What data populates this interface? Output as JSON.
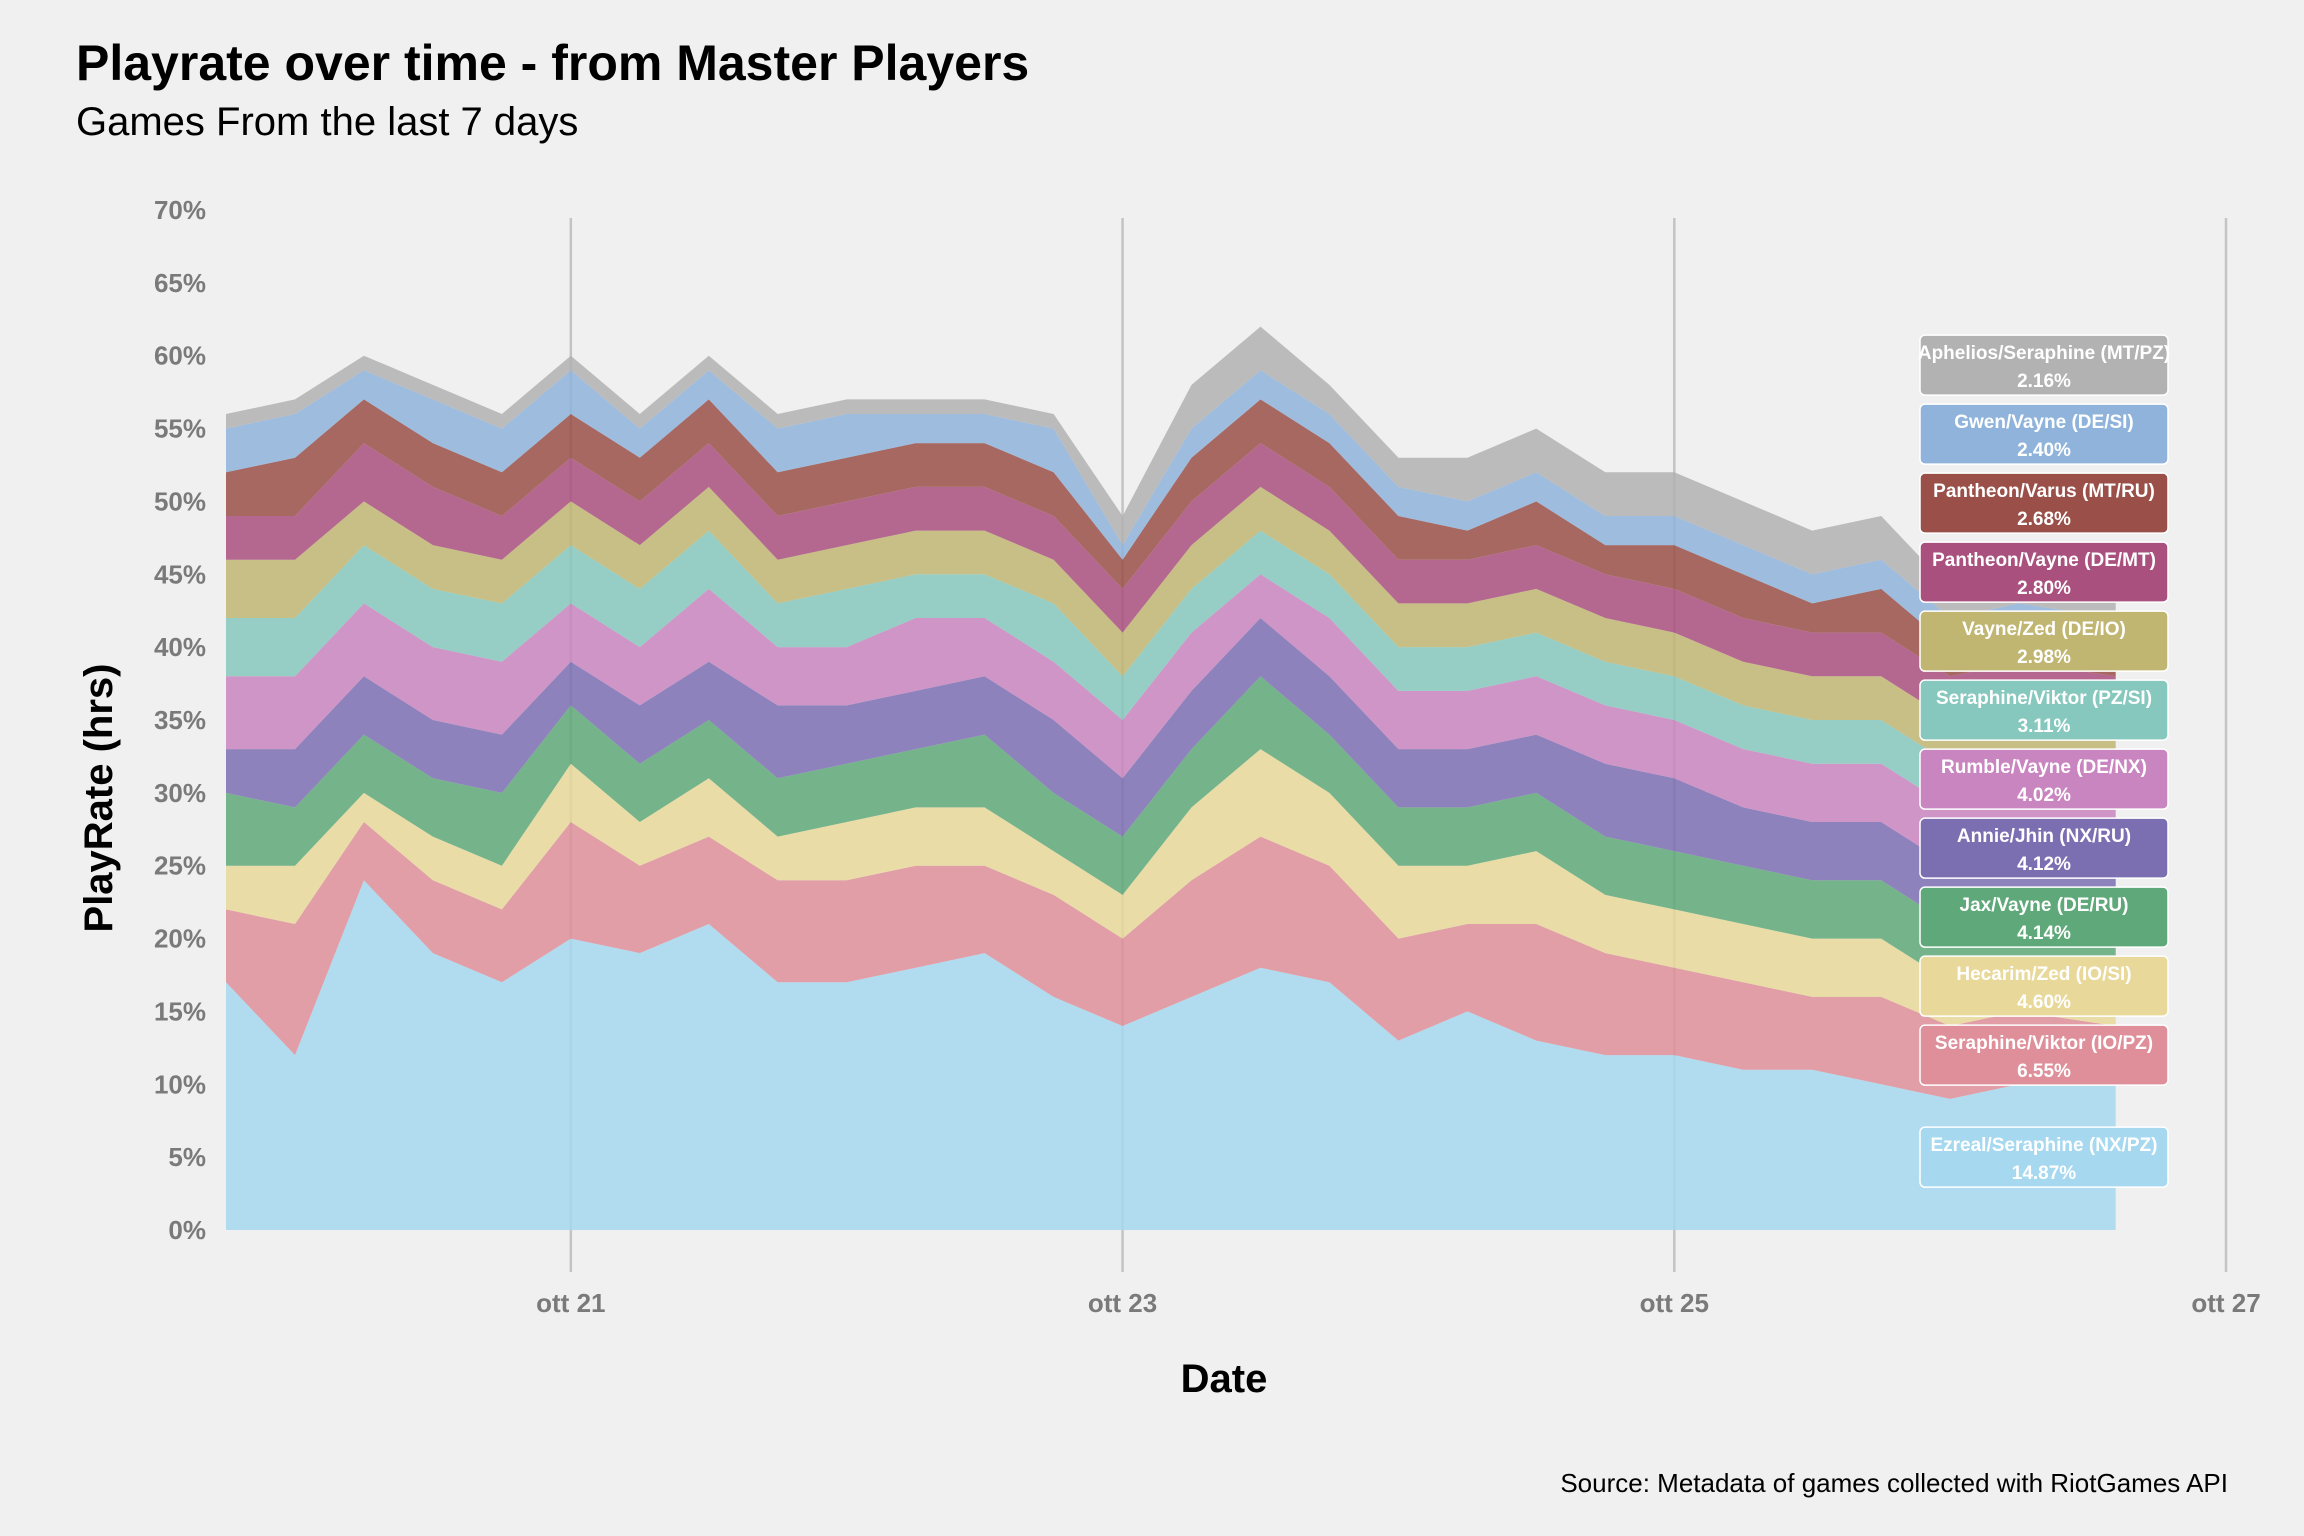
{
  "header": {
    "title": "Playrate over time - from Master Players",
    "subtitle": "Games From the last 7 days",
    "caption": "Source: Metadata of games collected with RiotGames API"
  },
  "chart_data": {
    "type": "area",
    "stacked": true,
    "xlabel": "Date",
    "ylabel": "PlayRate (hrs)",
    "xlim": [
      19.75,
      27
    ],
    "ylim": [
      0,
      70
    ],
    "x_ticks": [
      {
        "value": 21,
        "label": "ott 21"
      },
      {
        "value": 23,
        "label": "ott 23"
      },
      {
        "value": 25,
        "label": "ott 25"
      },
      {
        "value": 27,
        "label": "ott 27"
      }
    ],
    "y_ticks": [
      {
        "value": 0,
        "label": "0%"
      },
      {
        "value": 5,
        "label": "5%"
      },
      {
        "value": 10,
        "label": "10%"
      },
      {
        "value": 15,
        "label": "15%"
      },
      {
        "value": 20,
        "label": "20%"
      },
      {
        "value": 25,
        "label": "25%"
      },
      {
        "value": 30,
        "label": "30%"
      },
      {
        "value": 35,
        "label": "35%"
      },
      {
        "value": 40,
        "label": "40%"
      },
      {
        "value": 45,
        "label": "45%"
      },
      {
        "value": 50,
        "label": "50%"
      },
      {
        "value": 55,
        "label": "55%"
      },
      {
        "value": 60,
        "label": "60%"
      },
      {
        "value": 65,
        "label": "65%"
      },
      {
        "value": 70,
        "label": "70%"
      }
    ],
    "grid": {
      "vertical": true,
      "horizontal": false
    },
    "x": [
      19.75,
      20.0,
      20.25,
      20.5,
      20.75,
      21.0,
      21.25,
      21.5,
      21.75,
      22.0,
      22.25,
      22.5,
      22.75,
      23.0,
      23.25,
      23.5,
      23.75,
      24.0,
      24.25,
      24.5,
      24.75,
      25.0,
      25.25,
      25.5,
      25.75,
      26.0,
      26.25,
      26.6
    ],
    "series": [
      {
        "name": "Ezreal/Seraphine (NX/PZ)",
        "label": "Ezreal/Seraphine (NX/PZ)",
        "value_label": "14.87%",
        "color": "#a6d8f0",
        "values": [
          17,
          12,
          24,
          19,
          17,
          20,
          19,
          21,
          17,
          17,
          18,
          19,
          16,
          14,
          16,
          18,
          17,
          13,
          15,
          13,
          12,
          12,
          11,
          11,
          10,
          9,
          10,
          10
        ]
      },
      {
        "name": "Seraphine/Viktor (IO/PZ)",
        "label": "Seraphine/Viktor (IO/PZ)",
        "value_label": "6.55%",
        "color": "#de8f9a",
        "values": [
          5,
          9,
          4,
          5,
          5,
          8,
          6,
          6,
          7,
          7,
          7,
          6,
          7,
          6,
          8,
          9,
          8,
          7,
          6,
          8,
          7,
          6,
          6,
          5,
          6,
          5,
          5,
          4
        ]
      },
      {
        "name": "Hecarim/Zed (IO/SI)",
        "label": "Hecarim/Zed (IO/SI)",
        "value_label": "4.60%",
        "color": "#e8d89a",
        "values": [
          3,
          4,
          2,
          3,
          3,
          4,
          3,
          4,
          3,
          4,
          4,
          4,
          3,
          3,
          5,
          6,
          5,
          5,
          4,
          5,
          4,
          4,
          4,
          4,
          4,
          3,
          3,
          3
        ]
      },
      {
        "name": "Jax/Vayne (DE/RU)",
        "label": "Jax/Vayne (DE/RU)",
        "value_label": "4.14%",
        "color": "#5fa879",
        "values": [
          5,
          4,
          4,
          4,
          5,
          4,
          4,
          4,
          4,
          4,
          4,
          5,
          4,
          4,
          4,
          5,
          4,
          4,
          4,
          4,
          4,
          4,
          4,
          4,
          4,
          4,
          4,
          4
        ]
      },
      {
        "name": "Annie/Jhin (NX/RU)",
        "label": "Annie/Jhin (NX/RU)",
        "value_label": "4.12%",
        "color": "#7b6fb2",
        "values": [
          3,
          4,
          4,
          4,
          4,
          3,
          4,
          4,
          5,
          4,
          4,
          4,
          5,
          4,
          4,
          4,
          4,
          4,
          4,
          4,
          5,
          5,
          4,
          4,
          4,
          4,
          4,
          4
        ]
      },
      {
        "name": "Rumble/Vayne (DE/NX)",
        "label": "Rumble/Vayne (DE/NX)",
        "value_label": "4.02%",
        "color": "#c985c0",
        "values": [
          5,
          5,
          5,
          5,
          5,
          4,
          4,
          5,
          4,
          4,
          5,
          4,
          4,
          4,
          4,
          3,
          4,
          4,
          4,
          4,
          4,
          4,
          4,
          4,
          4,
          4,
          4,
          4
        ]
      },
      {
        "name": "Seraphine/Viktor (PZ/SI)",
        "label": "Seraphine/Viktor (PZ/SI)",
        "value_label": "3.11%",
        "color": "#86c8bd",
        "values": [
          4,
          4,
          4,
          4,
          4,
          4,
          4,
          4,
          3,
          4,
          3,
          3,
          4,
          3,
          3,
          3,
          3,
          3,
          3,
          3,
          3,
          3,
          3,
          3,
          3,
          3,
          3,
          3
        ]
      },
      {
        "name": "Vayne/Zed (DE/IO)",
        "label": "Vayne/Zed (DE/IO)",
        "value_label": "2.98%",
        "color": "#c0b672",
        "values": [
          4,
          4,
          3,
          3,
          3,
          3,
          3,
          3,
          3,
          3,
          3,
          3,
          3,
          3,
          3,
          3,
          3,
          3,
          3,
          3,
          3,
          3,
          3,
          3,
          3,
          3,
          3,
          3
        ]
      },
      {
        "name": "Pantheon/Vayne (DE/MT)",
        "label": "Pantheon/Vayne (DE/MT)",
        "value_label": "2.80%",
        "color": "#a9507e",
        "values": [
          3,
          3,
          4,
          4,
          3,
          3,
          3,
          3,
          3,
          3,
          3,
          3,
          3,
          3,
          3,
          3,
          3,
          3,
          3,
          3,
          3,
          3,
          3,
          3,
          3,
          3,
          3,
          3
        ]
      },
      {
        "name": "Pantheon/Varus (MT/RU)",
        "label": "Pantheon/Varus (MT/RU)",
        "value_label": "2.68%",
        "color": "#9a5048",
        "values": [
          3,
          4,
          3,
          3,
          3,
          3,
          3,
          3,
          3,
          3,
          3,
          3,
          3,
          2,
          3,
          3,
          3,
          3,
          2,
          3,
          2,
          3,
          3,
          2,
          3,
          2,
          2,
          2
        ]
      },
      {
        "name": "Gwen/Vayne (DE/SI)",
        "label": "Gwen/Vayne (DE/SI)",
        "value_label": "2.40%",
        "color": "#8fb3da",
        "values": [
          3,
          3,
          2,
          3,
          3,
          3,
          2,
          2,
          3,
          3,
          2,
          2,
          3,
          1,
          2,
          2,
          2,
          2,
          2,
          2,
          2,
          2,
          2,
          2,
          2,
          2,
          2,
          2
        ]
      },
      {
        "name": "Aphelios/Seraphine (MT/PZ)",
        "label": "Aphelios/Seraphine (MT/PZ)",
        "value_label": "2.16%",
        "color": "#b2b2b2",
        "values": [
          1,
          1,
          1,
          1,
          1,
          1,
          1,
          1,
          1,
          1,
          1,
          1,
          1,
          2,
          3,
          3,
          2,
          2,
          3,
          3,
          3,
          3,
          3,
          3,
          3,
          2,
          2,
          2
        ]
      }
    ]
  }
}
